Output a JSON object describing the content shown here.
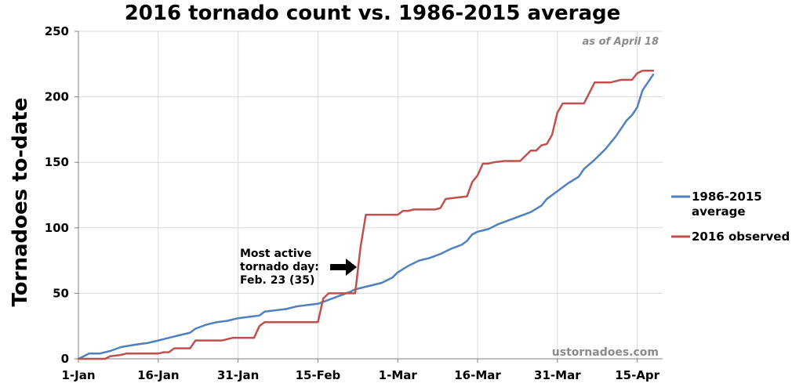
{
  "chart_data": {
    "type": "line",
    "title": "2016 tornado count vs. 1986-2015 average",
    "ylabel": "Tornadoes to-date",
    "xlabel": "",
    "note": "as of April 18",
    "credit": "ustornadoes.com",
    "annotation": [
      "Most active",
      "tornado day:",
      "Feb. 23 (35)"
    ],
    "ylim": [
      0,
      250
    ],
    "yticks": [
      0,
      50,
      100,
      150,
      200,
      250
    ],
    "xlim": [
      "2016-01-01",
      "2016-04-18"
    ],
    "xticks": [
      {
        "date": "2016-01-01",
        "label": "1-Jan"
      },
      {
        "date": "2016-01-16",
        "label": "16-Jan"
      },
      {
        "date": "2016-01-31",
        "label": "31-Jan"
      },
      {
        "date": "2016-02-15",
        "label": "15-Feb"
      },
      {
        "date": "2016-03-01",
        "label": "1-Mar"
      },
      {
        "date": "2016-03-16",
        "label": "16-Mar"
      },
      {
        "date": "2016-03-31",
        "label": "31-Mar"
      },
      {
        "date": "2016-04-15",
        "label": "15-Apr"
      }
    ],
    "grid": "vertical and horizontal",
    "legend_position": "right",
    "series": [
      {
        "name": "1986-2015 average",
        "color": "#4f81bd",
        "points": [
          [
            "2016-01-01",
            0
          ],
          [
            "2016-01-02",
            2
          ],
          [
            "2016-01-03",
            4
          ],
          [
            "2016-01-05",
            4
          ],
          [
            "2016-01-07",
            6
          ],
          [
            "2016-01-09",
            9
          ],
          [
            "2016-01-12",
            11
          ],
          [
            "2016-01-14",
            12
          ],
          [
            "2016-01-16",
            14
          ],
          [
            "2016-01-18",
            16
          ],
          [
            "2016-01-20",
            18
          ],
          [
            "2016-01-22",
            20
          ],
          [
            "2016-01-23",
            23
          ],
          [
            "2016-01-25",
            26
          ],
          [
            "2016-01-27",
            28
          ],
          [
            "2016-01-29",
            29
          ],
          [
            "2016-01-31",
            31
          ],
          [
            "2016-02-02",
            32
          ],
          [
            "2016-02-04",
            33
          ],
          [
            "2016-02-05",
            36
          ],
          [
            "2016-02-07",
            37
          ],
          [
            "2016-02-09",
            38
          ],
          [
            "2016-02-11",
            40
          ],
          [
            "2016-02-13",
            41
          ],
          [
            "2016-02-15",
            42
          ],
          [
            "2016-02-17",
            45
          ],
          [
            "2016-02-19",
            48
          ],
          [
            "2016-02-21",
            51
          ],
          [
            "2016-02-22",
            53
          ],
          [
            "2016-02-24",
            55
          ],
          [
            "2016-02-25",
            56
          ],
          [
            "2016-02-27",
            58
          ],
          [
            "2016-02-29",
            62
          ],
          [
            "2016-03-01",
            66
          ],
          [
            "2016-03-03",
            71
          ],
          [
            "2016-03-05",
            75
          ],
          [
            "2016-03-07",
            77
          ],
          [
            "2016-03-09",
            80
          ],
          [
            "2016-03-11",
            84
          ],
          [
            "2016-03-13",
            87
          ],
          [
            "2016-03-14",
            90
          ],
          [
            "2016-03-15",
            95
          ],
          [
            "2016-03-16",
            97
          ],
          [
            "2016-03-18",
            99
          ],
          [
            "2016-03-20",
            103
          ],
          [
            "2016-03-22",
            106
          ],
          [
            "2016-03-24",
            109
          ],
          [
            "2016-03-26",
            112
          ],
          [
            "2016-03-28",
            117
          ],
          [
            "2016-03-29",
            122
          ],
          [
            "2016-03-31",
            128
          ],
          [
            "2016-04-02",
            134
          ],
          [
            "2016-04-04",
            139
          ],
          [
            "2016-04-05",
            145
          ],
          [
            "2016-04-07",
            152
          ],
          [
            "2016-04-09",
            160
          ],
          [
            "2016-04-11",
            170
          ],
          [
            "2016-04-13",
            182
          ],
          [
            "2016-04-14",
            186
          ],
          [
            "2016-04-15",
            192
          ],
          [
            "2016-04-16",
            205
          ],
          [
            "2016-04-17",
            211
          ],
          [
            "2016-04-18",
            217
          ]
        ]
      },
      {
        "name": "2016 observed",
        "color": "#c0504d",
        "points": [
          [
            "2016-01-01",
            0
          ],
          [
            "2016-01-06",
            0
          ],
          [
            "2016-01-07",
            2
          ],
          [
            "2016-01-09",
            3
          ],
          [
            "2016-01-10",
            4
          ],
          [
            "2016-01-16",
            4
          ],
          [
            "2016-01-17",
            5
          ],
          [
            "2016-01-18",
            5
          ],
          [
            "2016-01-19",
            8
          ],
          [
            "2016-01-22",
            8
          ],
          [
            "2016-01-23",
            14
          ],
          [
            "2016-01-28",
            14
          ],
          [
            "2016-01-30",
            16
          ],
          [
            "2016-02-03",
            16
          ],
          [
            "2016-02-04",
            25
          ],
          [
            "2016-02-05",
            28
          ],
          [
            "2016-02-15",
            28
          ],
          [
            "2016-02-16",
            46
          ],
          [
            "2016-02-17",
            50
          ],
          [
            "2016-02-22",
            50
          ],
          [
            "2016-02-23",
            85
          ],
          [
            "2016-02-24",
            110
          ],
          [
            "2016-03-01",
            110
          ],
          [
            "2016-03-02",
            113
          ],
          [
            "2016-03-03",
            113
          ],
          [
            "2016-03-04",
            114
          ],
          [
            "2016-03-08",
            114
          ],
          [
            "2016-03-09",
            115
          ],
          [
            "2016-03-10",
            122
          ],
          [
            "2016-03-12",
            123
          ],
          [
            "2016-03-14",
            124
          ],
          [
            "2016-03-15",
            135
          ],
          [
            "2016-03-16",
            140
          ],
          [
            "2016-03-17",
            149
          ],
          [
            "2016-03-18",
            149
          ],
          [
            "2016-03-19",
            150
          ],
          [
            "2016-03-21",
            151
          ],
          [
            "2016-03-24",
            151
          ],
          [
            "2016-03-26",
            159
          ],
          [
            "2016-03-27",
            159
          ],
          [
            "2016-03-28",
            163
          ],
          [
            "2016-03-29",
            164
          ],
          [
            "2016-03-30",
            171
          ],
          [
            "2016-03-31",
            188
          ],
          [
            "2016-04-01",
            195
          ],
          [
            "2016-04-05",
            195
          ],
          [
            "2016-04-07",
            211
          ],
          [
            "2016-04-10",
            211
          ],
          [
            "2016-04-12",
            213
          ],
          [
            "2016-04-14",
            213
          ],
          [
            "2016-04-15",
            218
          ],
          [
            "2016-04-16",
            220
          ],
          [
            "2016-04-18",
            220
          ]
        ]
      }
    ]
  }
}
